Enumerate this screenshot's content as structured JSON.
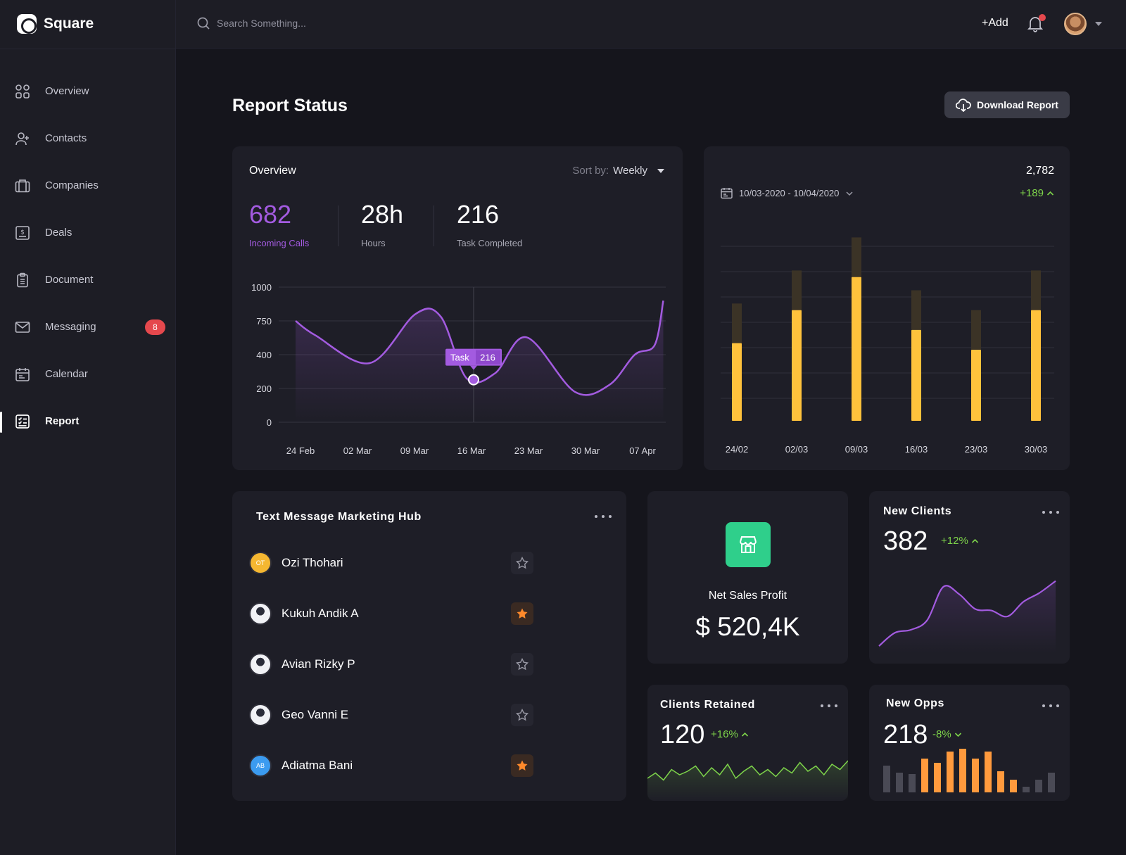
{
  "brand": {
    "name": "Square"
  },
  "search": {
    "placeholder": "Search Something..."
  },
  "topbar": {
    "add_label": "+Add"
  },
  "nav": [
    {
      "label": "Overview",
      "icon": "grid-icon"
    },
    {
      "label": "Contacts",
      "icon": "user-plus-icon"
    },
    {
      "label": "Companies",
      "icon": "briefcase-icon"
    },
    {
      "label": "Deals",
      "icon": "dollar-doc-icon"
    },
    {
      "label": "Document",
      "icon": "clipboard-icon"
    },
    {
      "label": "Messaging",
      "icon": "mail-icon",
      "badge": "8"
    },
    {
      "label": "Calendar",
      "icon": "calendar-icon"
    },
    {
      "label": "Report",
      "icon": "report-icon",
      "active": true
    }
  ],
  "page": {
    "title": "Report Status",
    "download_label": "Download Report"
  },
  "overview": {
    "title": "Overview",
    "sort_label": "Sort by:",
    "sort_value": "Weekly",
    "stats": [
      {
        "value": "682",
        "label": "Incoming Calls"
      },
      {
        "value": "28h",
        "label": "Hours"
      },
      {
        "value": "216",
        "label": "Task Completed"
      }
    ],
    "tooltip": {
      "label": "Task",
      "value": "216"
    }
  },
  "range_card": {
    "total": "2,782",
    "date_range": "10/03-2020 - 10/04/2020",
    "delta": "+189"
  },
  "hub": {
    "title": "Text Message Marketing Hub",
    "contacts": [
      {
        "name": "Ozi Thohari",
        "initials": "OT",
        "color": "#f5b731",
        "starred": false
      },
      {
        "name": "Kukuh Andik A",
        "initials": "",
        "color": "#c9ccd6",
        "starred": true
      },
      {
        "name": "Avian Rizky P",
        "initials": "",
        "color": "#c9ccd6",
        "starred": false
      },
      {
        "name": "Geo Vanni E",
        "initials": "",
        "color": "#c9ccd6",
        "starred": false
      },
      {
        "name": "Adiatma Bani",
        "initials": "AB",
        "color": "#3b9bf0",
        "starred": true
      }
    ]
  },
  "net_sales": {
    "title": "Net Sales Profit",
    "value": "$ 520,4K"
  },
  "new_clients": {
    "title": "New Clients",
    "value": "382",
    "delta": "+12%"
  },
  "clients_retained": {
    "title": "Clients Retained",
    "value": "120",
    "delta": "+16%"
  },
  "new_opps": {
    "title": "New Opps",
    "value": "218",
    "delta": "-8%"
  },
  "colors": {
    "purple": "#a35be0",
    "yellow": "#ffc23c",
    "green": "#7dd34a",
    "orange": "#ff9a3d",
    "store_green": "#2fcf8b"
  },
  "chart_data": [
    {
      "type": "line",
      "name": "overview-line",
      "x": [
        "24 Feb",
        "02 Mar",
        "09 Mar",
        "16 Mar",
        "23 Mar",
        "30 Mar",
        "07 Apr"
      ],
      "y_ticks": [
        "1000",
        "750",
        "400",
        "200",
        "0"
      ],
      "points": [
        [
          0,
          750
        ],
        [
          0.35,
          600
        ],
        [
          1.3,
          350
        ],
        [
          2.1,
          800
        ],
        [
          2.55,
          780
        ],
        [
          3.0,
          260
        ],
        [
          3.5,
          290
        ],
        [
          4.05,
          580
        ],
        [
          4.9,
          180
        ],
        [
          5.5,
          220
        ],
        [
          5.95,
          400
        ],
        [
          6.3,
          500
        ],
        [
          6.45,
          900
        ]
      ],
      "ylim": [
        0,
        1000
      ]
    },
    {
      "type": "bar",
      "name": "weekly-bars",
      "categories": [
        "24/02",
        "02/03",
        "09/03",
        "16/03",
        "23/03",
        "30/03"
      ],
      "values": [
        47,
        67,
        87,
        55,
        43,
        67
      ],
      "background_values": [
        71,
        91,
        111,
        79,
        67,
        91
      ],
      "ylim": [
        0,
        115
      ]
    },
    {
      "type": "line",
      "name": "new-clients-spark",
      "points": [
        0,
        18,
        22,
        35,
        80,
        70,
        50,
        48,
        40,
        60,
        72,
        88
      ]
    },
    {
      "type": "line",
      "name": "clients-retained-spark",
      "points": [
        20,
        35,
        15,
        45,
        30,
        40,
        55,
        25,
        50,
        30,
        60,
        20,
        40,
        55,
        30,
        45,
        25,
        50,
        35,
        65,
        40,
        55,
        30,
        60,
        45,
        70
      ]
    },
    {
      "type": "bar",
      "name": "new-opps-bars",
      "values": [
        38,
        28,
        26,
        48,
        42,
        58,
        62,
        48,
        58,
        30,
        18,
        8,
        18,
        28
      ],
      "highlight": [
        false,
        false,
        false,
        true,
        true,
        true,
        true,
        true,
        true,
        true,
        true,
        false,
        false,
        false
      ]
    }
  ]
}
